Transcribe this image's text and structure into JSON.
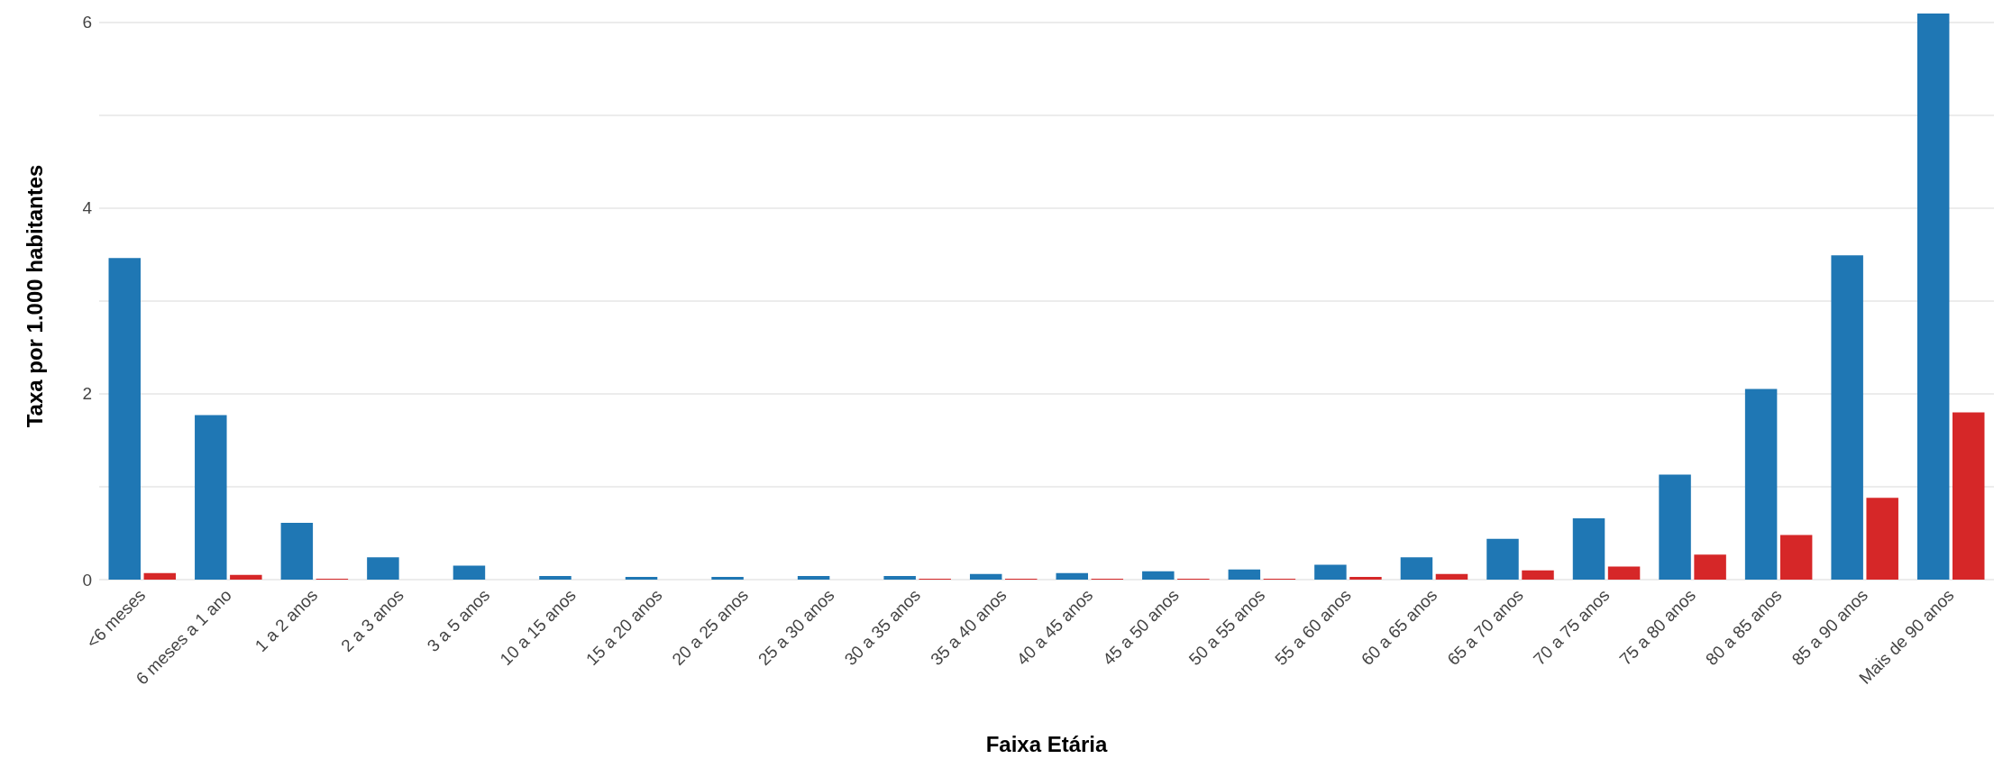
{
  "chart_data": {
    "type": "bar",
    "xlabel": "Faixa Etária",
    "ylabel": "Taxa por 1.000 habitantes",
    "categories": [
      "<6 meses",
      "6 meses a 1 ano",
      "1 a 2 anos",
      "2 a 3 anos",
      "3 a 5 anos",
      "10 a 15 anos",
      "15 a 20 anos",
      "20 a 25 anos",
      "25 a 30 anos",
      "30 a 35 anos",
      "35 a 40 anos",
      "40 a 45 anos",
      "45 a 50 anos",
      "50 a 55 anos",
      "55 a 60 anos",
      "60 a 65 anos",
      "65 a 70 anos",
      "70 a 75 anos",
      "75 a 80 anos",
      "80 a 85 anos",
      "85 a 90 anos",
      "Mais de 90 anos"
    ],
    "series": [
      {
        "color": "#1f77b4",
        "values": [
          3.46,
          1.77,
          0.61,
          0.24,
          0.15,
          0.04,
          0.03,
          0.03,
          0.04,
          0.04,
          0.06,
          0.07,
          0.09,
          0.11,
          0.16,
          0.24,
          0.44,
          0.66,
          1.13,
          2.05,
          3.49,
          6.09
        ]
      },
      {
        "color": "#d62728",
        "values": [
          0.07,
          0.05,
          0.01,
          0,
          0,
          0,
          0,
          0,
          0,
          0.01,
          0.01,
          0.01,
          0.01,
          0.01,
          0.03,
          0.06,
          0.1,
          0.14,
          0.27,
          0.48,
          0.88,
          1.8
        ]
      }
    ],
    "ylim": [
      0,
      6.1
    ],
    "yticks": [
      0,
      {
        "value": 1,
        "label": null
      },
      2,
      {
        "value": 3,
        "label": null
      },
      4,
      {
        "value": 5,
        "label": null
      },
      6
    ],
    "grid": "y"
  }
}
